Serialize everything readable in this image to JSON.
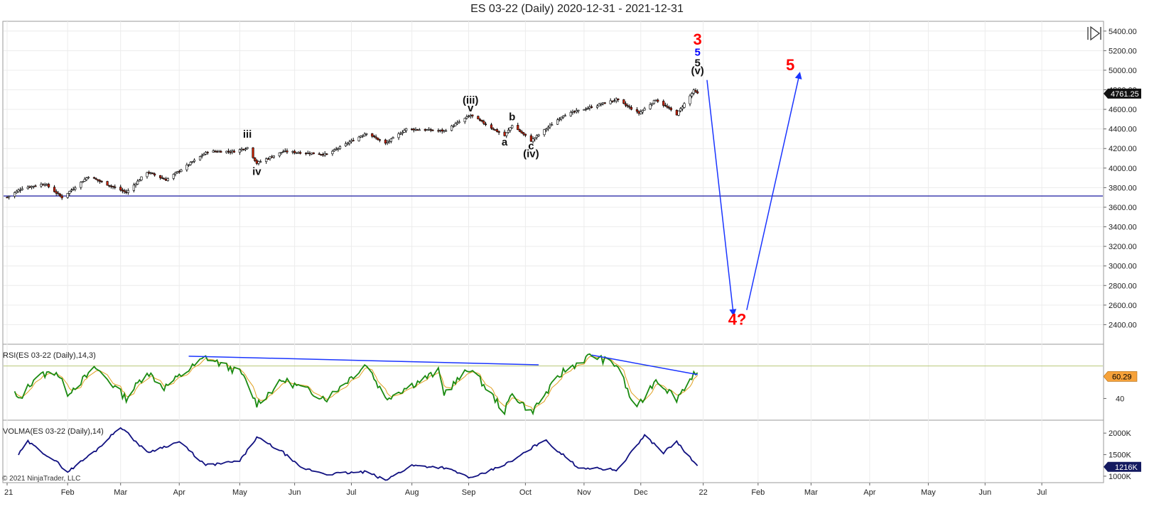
{
  "title": "ES 03-22 (Daily)  2020-12-31 - 2021-12-31",
  "copyright": "© 2021 NinjaTrader, LLC",
  "chart_data": [
    {
      "type": "candlestick",
      "ylim": [
        2200,
        5500
      ],
      "y_ticks": [
        "5400.00",
        "5200.00",
        "5000.00",
        "4800.00",
        "4600.00",
        "4400.00",
        "4200.00",
        "4000.00",
        "3800.00",
        "3600.00",
        "3400.00",
        "3200.00",
        "3000.00",
        "2800.00",
        "2600.00",
        "2400.00"
      ],
      "last_price_label": "4761.25",
      "horizontal_line_price": 3715,
      "x_ticks": [
        "21",
        "Feb",
        "Mar",
        "Apr",
        "May",
        "Jun",
        "Jul",
        "Aug",
        "Sep",
        "Oct",
        "Nov",
        "Dec",
        "22",
        "Feb",
        "Mar",
        "Apr",
        "May",
        "Jun",
        "Jul"
      ],
      "close_anchors": [
        {
          "date": "2020-12-31",
          "close": 3702
        },
        {
          "date": "2021-01-08",
          "close": 3796
        },
        {
          "date": "2021-01-20",
          "close": 3840
        },
        {
          "date": "2021-01-29",
          "close": 3700
        },
        {
          "date": "2021-02-12",
          "close": 3915
        },
        {
          "date": "2021-03-04",
          "close": 3750
        },
        {
          "date": "2021-03-15",
          "close": 3960
        },
        {
          "date": "2021-03-25",
          "close": 3880
        },
        {
          "date": "2021-04-16",
          "close": 4170
        },
        {
          "date": "2021-04-30",
          "close": 4170
        },
        {
          "date": "2021-05-07",
          "close": 4210
        },
        {
          "date": "2021-05-12",
          "close": 4050
        },
        {
          "date": "2021-05-26",
          "close": 4170
        },
        {
          "date": "2021-06-18",
          "close": 4140
        },
        {
          "date": "2021-07-09",
          "close": 4360
        },
        {
          "date": "2021-07-19",
          "close": 4250
        },
        {
          "date": "2021-07-30",
          "close": 4400
        },
        {
          "date": "2021-08-19",
          "close": 4380
        },
        {
          "date": "2021-09-02",
          "close": 4540
        },
        {
          "date": "2021-09-20",
          "close": 4330
        },
        {
          "date": "2021-09-24",
          "close": 4440
        },
        {
          "date": "2021-10-04",
          "close": 4280
        },
        {
          "date": "2021-10-21",
          "close": 4540
        },
        {
          "date": "2021-11-18",
          "close": 4700
        },
        {
          "date": "2021-11-30",
          "close": 4560
        },
        {
          "date": "2021-12-09",
          "close": 4700
        },
        {
          "date": "2021-12-20",
          "close": 4550
        },
        {
          "date": "2021-12-29",
          "close": 4790
        },
        {
          "date": "2021-12-31",
          "close": 4761
        }
      ],
      "wave_labels": [
        {
          "text": "iii",
          "date": "2021-05-07",
          "price": 4310,
          "color": "#111111"
        },
        {
          "text": "iv",
          "date": "2021-05-12",
          "price": 3930,
          "color": "#111111"
        },
        {
          "text": "(iii)",
          "date": "2021-09-02",
          "price": 4660,
          "color": "#111111"
        },
        {
          "text": "v",
          "date": "2021-09-02",
          "price": 4580,
          "color": "#111111"
        },
        {
          "text": "a",
          "date": "2021-09-20",
          "price": 4230,
          "color": "#111111"
        },
        {
          "text": "b",
          "date": "2021-09-24",
          "price": 4490,
          "color": "#111111"
        },
        {
          "text": "c",
          "date": "2021-10-04",
          "price": 4190,
          "color": "#111111"
        },
        {
          "text": "(iv)",
          "date": "2021-10-04",
          "price": 4110,
          "color": "#111111"
        },
        {
          "text": "3",
          "date": "2021-12-31",
          "price": 5260,
          "color": "#ff0000"
        },
        {
          "text": "5",
          "date": "2021-12-31",
          "price": 5150,
          "color": "#0000ff"
        },
        {
          "text": "5",
          "date": "2021-12-31",
          "price": 5040,
          "color": "#111111"
        },
        {
          "text": "(v)",
          "date": "2021-12-31",
          "price": 4960,
          "color": "#111111"
        },
        {
          "text": "5",
          "date": "2022-02-18",
          "price": 5000,
          "color": "#ff0000"
        },
        {
          "text": "4?",
          "date": "2022-01-21",
          "price": 2400,
          "color": "#ff0000"
        }
      ],
      "projection_arrows": [
        {
          "from": {
            "date": "2022-01-05",
            "price": 4900
          },
          "to": {
            "date": "2022-01-19",
            "price": 2500
          }
        },
        {
          "from": {
            "date": "2022-01-26",
            "price": 2550
          },
          "to": {
            "date": "2022-02-23",
            "price": 4970
          }
        }
      ]
    },
    {
      "type": "line",
      "label": "RSI(ES 03-22 (Daily),14,3)",
      "ylim": [
        20,
        90
      ],
      "y_ticks": [
        "40"
      ],
      "overbought_level": 70,
      "last_value_label": "60.29",
      "anchors": [
        {
          "date": "2021-01-04",
          "value": 45
        },
        {
          "date": "2021-01-06",
          "value": 38
        },
        {
          "date": "2021-01-15",
          "value": 60
        },
        {
          "date": "2021-01-26",
          "value": 65
        },
        {
          "date": "2021-02-01",
          "value": 45
        },
        {
          "date": "2021-02-16",
          "value": 68
        },
        {
          "date": "2021-03-04",
          "value": 40
        },
        {
          "date": "2021-03-15",
          "value": 65
        },
        {
          "date": "2021-03-24",
          "value": 50
        },
        {
          "date": "2021-04-15",
          "value": 78
        },
        {
          "date": "2021-05-04",
          "value": 63
        },
        {
          "date": "2021-05-12",
          "value": 35
        },
        {
          "date": "2021-05-26",
          "value": 57
        },
        {
          "date": "2021-06-18",
          "value": 40
        },
        {
          "date": "2021-07-09",
          "value": 72
        },
        {
          "date": "2021-07-19",
          "value": 40
        },
        {
          "date": "2021-08-16",
          "value": 65
        },
        {
          "date": "2021-08-19",
          "value": 45
        },
        {
          "date": "2021-09-02",
          "value": 68
        },
        {
          "date": "2021-09-20",
          "value": 28
        },
        {
          "date": "2021-09-24",
          "value": 45
        },
        {
          "date": "2021-10-04",
          "value": 27
        },
        {
          "date": "2021-10-21",
          "value": 65
        },
        {
          "date": "2021-11-05",
          "value": 80
        },
        {
          "date": "2021-11-19",
          "value": 70
        },
        {
          "date": "2021-11-26",
          "value": 38
        },
        {
          "date": "2021-11-30",
          "value": 33
        },
        {
          "date": "2021-12-09",
          "value": 58
        },
        {
          "date": "2021-12-20",
          "value": 40
        },
        {
          "date": "2021-12-29",
          "value": 63
        },
        {
          "date": "2021-12-31",
          "value": 60.29
        }
      ],
      "trend_lines": [
        {
          "from": {
            "date": "2021-04-06",
            "value": 79
          },
          "to": {
            "date": "2021-10-08",
            "value": 71
          }
        },
        {
          "from": {
            "date": "2021-11-05",
            "value": 80
          },
          "to": {
            "date": "2021-12-31",
            "value": 62
          }
        }
      ]
    },
    {
      "type": "line",
      "label": "VOLMA(ES 03-22 (Daily),14)",
      "ylim": [
        850000,
        2300000
      ],
      "y_ticks": [
        "2000K",
        "1500K",
        "1000K"
      ],
      "last_value_label": "1216K",
      "anchors": [
        {
          "date": "2021-01-06",
          "value": 1500000
        },
        {
          "date": "2021-01-11",
          "value": 1800000
        },
        {
          "date": "2021-01-27",
          "value": 1300000
        },
        {
          "date": "2021-02-01",
          "value": 1100000
        },
        {
          "date": "2021-02-16",
          "value": 1600000
        },
        {
          "date": "2021-03-01",
          "value": 2150000
        },
        {
          "date": "2021-03-15",
          "value": 1550000
        },
        {
          "date": "2021-04-01",
          "value": 1800000
        },
        {
          "date": "2021-04-15",
          "value": 1250000
        },
        {
          "date": "2021-05-03",
          "value": 1350000
        },
        {
          "date": "2021-05-12",
          "value": 1900000
        },
        {
          "date": "2021-05-26",
          "value": 1550000
        },
        {
          "date": "2021-06-04",
          "value": 1200000
        },
        {
          "date": "2021-06-18",
          "value": 1050000
        },
        {
          "date": "2021-07-09",
          "value": 1100000
        },
        {
          "date": "2021-07-19",
          "value": 900000
        },
        {
          "date": "2021-08-02",
          "value": 1250000
        },
        {
          "date": "2021-08-19",
          "value": 1200000
        },
        {
          "date": "2021-09-03",
          "value": 950000
        },
        {
          "date": "2021-09-24",
          "value": 1350000
        },
        {
          "date": "2021-10-11",
          "value": 1850000
        },
        {
          "date": "2021-10-29",
          "value": 1200000
        },
        {
          "date": "2021-11-19",
          "value": 1150000
        },
        {
          "date": "2021-12-03",
          "value": 1950000
        },
        {
          "date": "2021-12-13",
          "value": 1550000
        },
        {
          "date": "2021-12-20",
          "value": 1800000
        },
        {
          "date": "2021-12-31",
          "value": 1216000
        }
      ]
    }
  ]
}
